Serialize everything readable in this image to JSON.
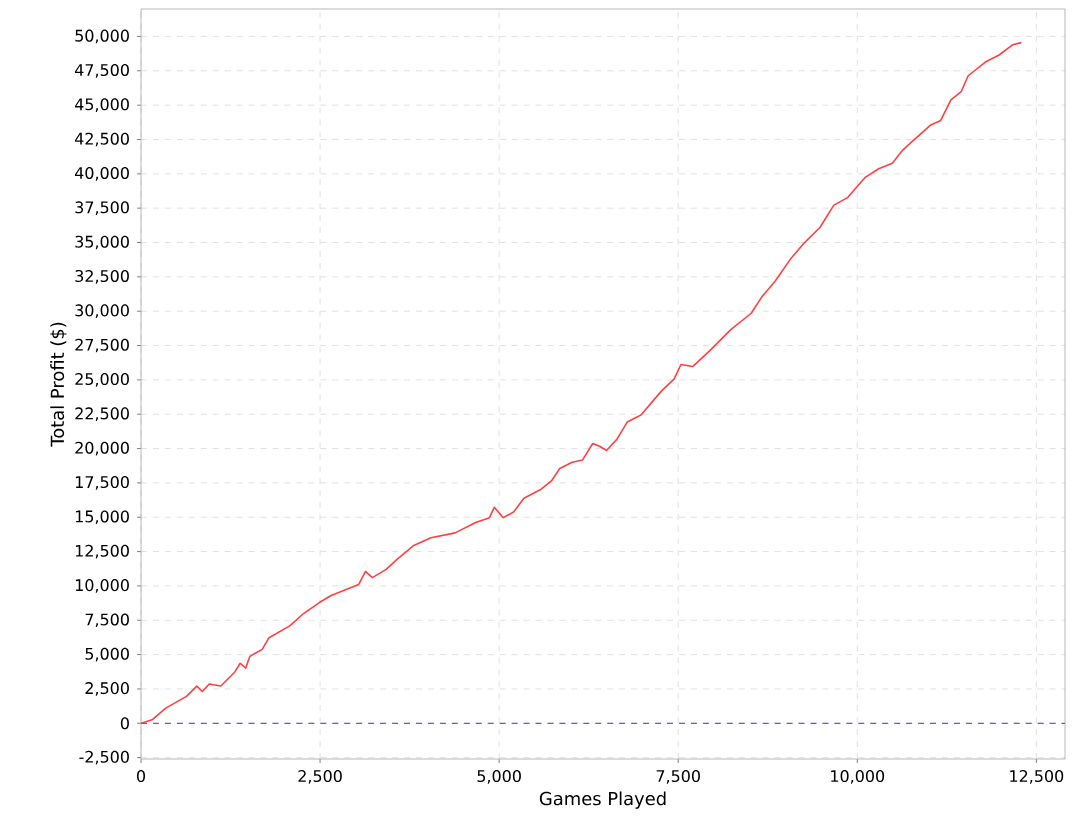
{
  "chart_data": {
    "type": "line",
    "xlabel": "Games Played",
    "ylabel": "Total Profit ($)",
    "x": [
      0,
      154,
      346,
      635,
      779,
      856,
      952,
      1115,
      1308,
      1385,
      1462,
      1519,
      1692,
      1788,
      2077,
      2269,
      2490,
      2654,
      3038,
      3135,
      3230,
      3423,
      3567,
      3808,
      4048,
      4385,
      4673,
      4865,
      4932,
      5058,
      5202,
      5346,
      5586,
      5730,
      5846,
      6019,
      6163,
      6307,
      6403,
      6499,
      6643,
      6788,
      6980,
      7268,
      7442,
      7538,
      7701,
      7942,
      8230,
      8519,
      8663,
      8855,
      9077,
      9240,
      9480,
      9673,
      9865,
      10106,
      10298,
      10490,
      10634,
      10827,
      11019,
      11163,
      11307,
      11452,
      11548,
      11788,
      11980,
      12172,
      12288
    ],
    "series": [
      {
        "color": "#ff4040",
        "values": [
          0,
          250,
          1100,
          1960,
          2710,
          2310,
          2860,
          2710,
          3720,
          4370,
          4020,
          4870,
          5380,
          6230,
          7090,
          7990,
          8790,
          9300,
          10100,
          11060,
          10600,
          11200,
          11900,
          12950,
          13510,
          13860,
          14620,
          14970,
          15730,
          14970,
          15380,
          16380,
          17040,
          17640,
          18550,
          19000,
          19160,
          20370,
          20170,
          19860,
          20670,
          21930,
          22440,
          24200,
          25060,
          26120,
          25970,
          27130,
          28640,
          29850,
          31010,
          32200,
          33860,
          34860,
          36110,
          37720,
          38270,
          39720,
          40370,
          40770,
          41730,
          42630,
          43530,
          43880,
          45390,
          45990,
          47140,
          48140,
          48650,
          49400,
          49550
        ]
      }
    ],
    "xlim": [
      0,
      12900
    ],
    "ylim": [
      -2600,
      52000
    ],
    "xticks": [
      0,
      {
        "value": 2500,
        "label": "2,500"
      },
      {
        "value": 5000,
        "label": "5,000"
      },
      {
        "value": 7500,
        "label": "7,500"
      },
      {
        "value": 10000,
        "label": "10,000"
      },
      {
        "value": 12500,
        "label": "12,500"
      }
    ],
    "yticks": [
      {
        "value": -2500,
        "label": "-2,500"
      },
      0,
      {
        "value": 2500,
        "label": "2,500"
      },
      {
        "value": 5000,
        "label": "5,000"
      },
      {
        "value": 7500,
        "label": "7,500"
      },
      {
        "value": 10000,
        "label": "10,000"
      },
      {
        "value": 12500,
        "label": "12,500"
      },
      {
        "value": 15000,
        "label": "15,000"
      },
      {
        "value": 17500,
        "label": "17,500"
      },
      {
        "value": 20000,
        "label": "20,000"
      },
      {
        "value": 22500,
        "label": "22,500"
      },
      {
        "value": 25000,
        "label": "25,000"
      },
      {
        "value": 27500,
        "label": "27,500"
      },
      {
        "value": 30000,
        "label": "30,000"
      },
      {
        "value": 32500,
        "label": "32,500"
      },
      {
        "value": 35000,
        "label": "35,000"
      },
      {
        "value": 37500,
        "label": "37,500"
      },
      {
        "value": 40000,
        "label": "40,000"
      },
      {
        "value": 42500,
        "label": "42,500"
      },
      {
        "value": 45000,
        "label": "45,000"
      },
      {
        "value": 47500,
        "label": "47,500"
      },
      {
        "value": 50000,
        "label": "50,000"
      }
    ],
    "ref_lines": [
      {
        "axis": "y",
        "value": 0,
        "color": "#5a5aff",
        "line_style": "dashed"
      }
    ],
    "grid": true,
    "marker": "none",
    "line_style": "solid"
  }
}
